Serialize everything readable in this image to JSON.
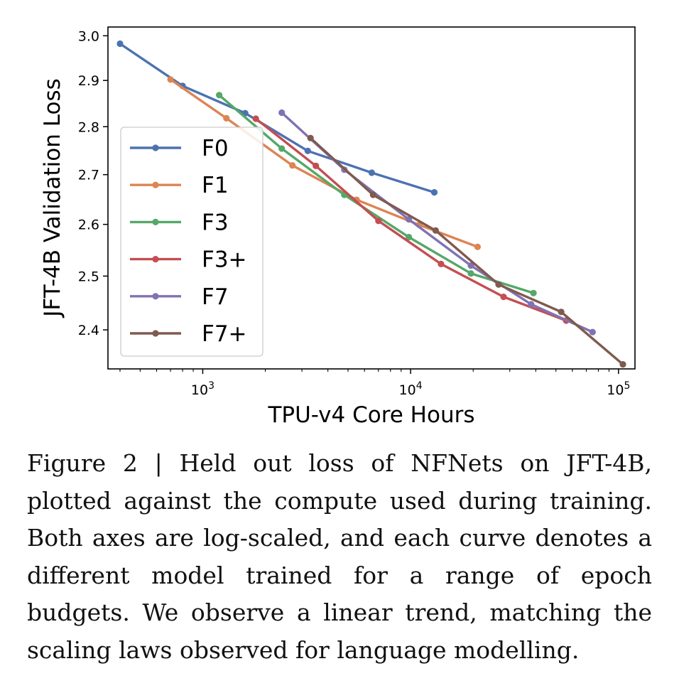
{
  "caption": "Figure 2 | Held out loss of NFNets on JFT-4B, plotted against the compute used during training. Both axes are log-scaled, and each curve denotes a different model trained for a range of epoch budgets. We observe a linear trend, matching the scaling laws observed for language modelling.",
  "chart_data": {
    "type": "line",
    "xlabel": "TPU-v4 Core Hours",
    "ylabel": "JFT-4B Validation Loss",
    "xscale": "log",
    "yscale": "log",
    "xlim": [
      350,
      120000
    ],
    "ylim": [
      2.33,
      3.02
    ],
    "xticks": [
      {
        "value": 1000,
        "base": "10",
        "exp": "3"
      },
      {
        "value": 10000,
        "base": "10",
        "exp": "4"
      },
      {
        "value": 100000,
        "base": "10",
        "exp": "5"
      }
    ],
    "yticks": [
      {
        "value": 2.4,
        "label": "2.4"
      },
      {
        "value": 2.5,
        "label": "2.5"
      },
      {
        "value": 2.6,
        "label": "2.6"
      },
      {
        "value": 2.7,
        "label": "2.7"
      },
      {
        "value": 2.8,
        "label": "2.8"
      },
      {
        "value": 2.9,
        "label": "2.9"
      },
      {
        "value": 3.0,
        "label": "3.0"
      }
    ],
    "legend_position": "left",
    "grid": false,
    "series": [
      {
        "name": "F0",
        "color": "#4c72b0",
        "points": [
          [
            400,
            2.982
          ],
          [
            800,
            2.888
          ],
          [
            1600,
            2.829
          ],
          [
            3200,
            2.749
          ],
          [
            6500,
            2.704
          ],
          [
            13000,
            2.664
          ]
        ]
      },
      {
        "name": "F1",
        "color": "#dd8452",
        "points": [
          [
            700,
            2.902
          ],
          [
            1300,
            2.818
          ],
          [
            2700,
            2.719
          ],
          [
            5500,
            2.649
          ],
          [
            11000,
            2.599
          ],
          [
            21000,
            2.556
          ]
        ]
      },
      {
        "name": "F3",
        "color": "#55a868",
        "points": [
          [
            1200,
            2.868
          ],
          [
            2400,
            2.754
          ],
          [
            4800,
            2.659
          ],
          [
            9800,
            2.575
          ],
          [
            19500,
            2.505
          ],
          [
            39000,
            2.468
          ]
        ]
      },
      {
        "name": "F3+",
        "color": "#c44e52",
        "points": [
          [
            1800,
            2.817
          ],
          [
            3500,
            2.718
          ],
          [
            7000,
            2.607
          ],
          [
            14000,
            2.523
          ],
          [
            28000,
            2.461
          ],
          [
            56000,
            2.417
          ]
        ]
      },
      {
        "name": "F7",
        "color": "#8172b2",
        "points": [
          [
            2400,
            2.83
          ],
          [
            4800,
            2.71
          ],
          [
            9800,
            2.61
          ],
          [
            19500,
            2.52
          ],
          [
            38000,
            2.447
          ],
          [
            75000,
            2.396
          ]
        ]
      },
      {
        "name": "F7+",
        "color": "#7f5a4f",
        "points": [
          [
            3300,
            2.776
          ],
          [
            6600,
            2.659
          ],
          [
            13200,
            2.588
          ],
          [
            26500,
            2.484
          ],
          [
            53000,
            2.433
          ],
          [
            105000,
            2.338
          ]
        ]
      }
    ]
  }
}
